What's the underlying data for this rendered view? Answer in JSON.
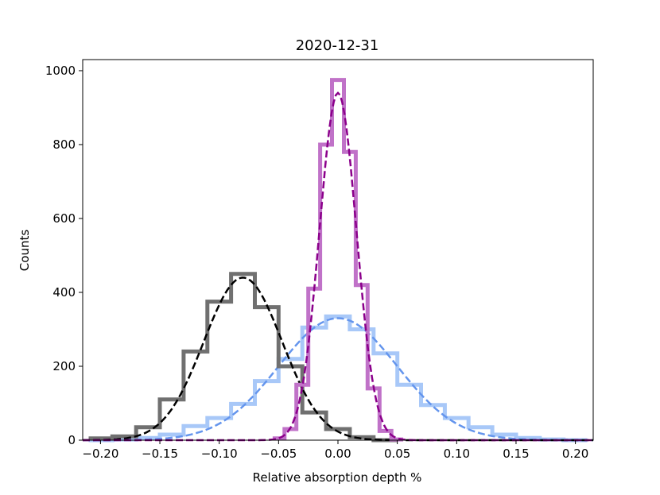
{
  "chart_data": {
    "type": "line",
    "title": "2020-12-31",
    "xlabel": "Relative absorption depth %",
    "ylabel": "Counts",
    "xlim": [
      -0.215,
      0.215
    ],
    "ylim": [
      0,
      1030
    ],
    "xticks": [
      -0.2,
      -0.15,
      -0.1,
      -0.05,
      0.0,
      0.05,
      0.1,
      0.15,
      0.2
    ],
    "xtick_labels": [
      "−0.20",
      "−0.15",
      "−0.10",
      "−0.05",
      "0.00",
      "0.05",
      "0.10",
      "0.15",
      "0.20"
    ],
    "yticks": [
      0,
      200,
      400,
      600,
      800,
      1000
    ],
    "ytick_labels": [
      "0",
      "200",
      "400",
      "600",
      "800",
      "1000"
    ],
    "grid": false,
    "series": [
      {
        "kind": "histogram",
        "color": "#a8c8f8",
        "fit_color": "#6495ed",
        "fit": {
          "amplitude": 330,
          "mean": 0.0,
          "sigma": 0.05
        },
        "x": [
          -0.2,
          -0.18,
          -0.16,
          -0.14,
          -0.12,
          -0.1,
          -0.08,
          -0.06,
          -0.04,
          -0.02,
          0.0,
          0.02,
          0.04,
          0.06,
          0.08,
          0.1,
          0.12,
          0.14,
          0.16,
          0.18,
          0.2
        ],
        "values": [
          0,
          2,
          6,
          15,
          38,
          60,
          98,
          160,
          220,
          305,
          335,
          300,
          235,
          150,
          95,
          60,
          35,
          15,
          6,
          2,
          0
        ]
      },
      {
        "kind": "histogram",
        "color": "#707070",
        "fit_color": "#000000",
        "fit": {
          "amplitude": 440,
          "mean": -0.08,
          "sigma": 0.033
        },
        "x": [
          -0.2,
          -0.18,
          -0.16,
          -0.14,
          -0.12,
          -0.1,
          -0.08,
          -0.06,
          -0.04,
          -0.02,
          0.0,
          0.02,
          0.04
        ],
        "values": [
          5,
          10,
          35,
          110,
          240,
          375,
          450,
          360,
          200,
          75,
          30,
          8,
          0
        ]
      },
      {
        "kind": "histogram",
        "color": "#c072c8",
        "fit_color": "#8b008b",
        "fit": {
          "amplitude": 940,
          "mean": 0.0,
          "sigma": 0.0155
        },
        "x": [
          -0.05,
          -0.04,
          -0.03,
          -0.02,
          -0.01,
          0.0,
          0.01,
          0.02,
          0.03,
          0.04,
          0.05
        ],
        "values": [
          5,
          30,
          150,
          410,
          800,
          975,
          780,
          420,
          140,
          25,
          2
        ]
      }
    ]
  }
}
